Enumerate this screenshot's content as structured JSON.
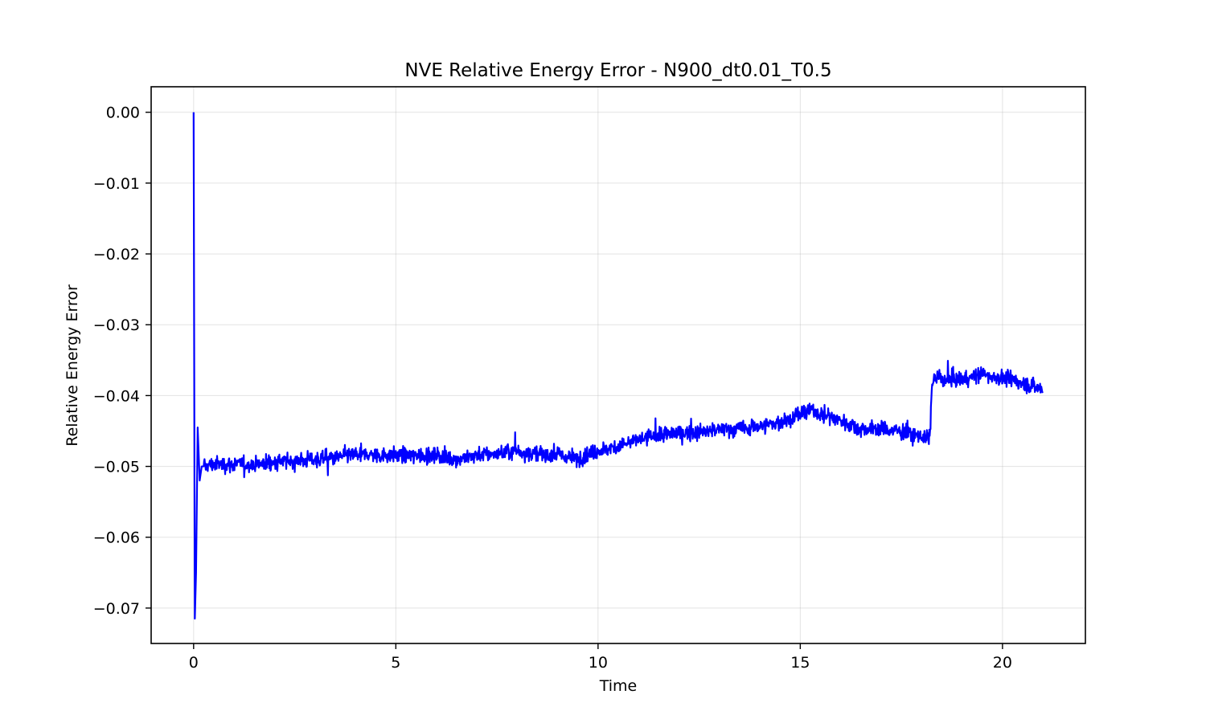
{
  "chart_data": {
    "type": "line",
    "title": "NVE Relative Energy Error - N900_dt0.01_T0.5",
    "xlabel": "Time",
    "ylabel": "Relative Energy Error",
    "xlim": [
      -1.05,
      22.05
    ],
    "ylim": [
      -0.075,
      0.0036
    ],
    "xticks": [
      0,
      5,
      10,
      15,
      20
    ],
    "xtick_labels": [
      "0",
      "5",
      "10",
      "15",
      "20"
    ],
    "yticks": [
      0.0,
      -0.01,
      -0.02,
      -0.03,
      -0.04,
      -0.05,
      -0.06,
      -0.07
    ],
    "ytick_labels": [
      "0.00",
      "−0.01",
      "−0.02",
      "−0.03",
      "−0.04",
      "−0.05",
      "−0.06",
      "−0.07"
    ],
    "grid": true,
    "legend": "none",
    "series": [
      {
        "color": "#0000ff",
        "x": [
          0.0,
          0.03,
          0.06,
          0.1,
          0.15,
          0.2,
          0.25,
          0.5,
          1.0,
          1.5,
          2.0,
          2.5,
          3.0,
          3.5,
          4.0,
          4.5,
          5.0,
          5.5,
          6.0,
          6.5,
          7.0,
          7.5,
          8.0,
          8.5,
          9.0,
          9.5,
          10.0,
          10.5,
          11.0,
          11.5,
          12.0,
          12.5,
          13.0,
          13.5,
          14.0,
          14.5,
          15.0,
          15.3,
          15.5,
          16.0,
          16.5,
          17.0,
          17.5,
          18.0,
          18.2,
          18.25,
          18.3,
          18.5,
          19.0,
          19.5,
          20.0,
          20.5,
          21.0
        ],
        "y": [
          0.0,
          -0.0715,
          -0.065,
          -0.0445,
          -0.052,
          -0.05,
          -0.05,
          -0.0497,
          -0.0497,
          -0.0497,
          -0.0494,
          -0.0492,
          -0.049,
          -0.0488,
          -0.0483,
          -0.0484,
          -0.0484,
          -0.0485,
          -0.0484,
          -0.049,
          -0.0484,
          -0.0482,
          -0.0478,
          -0.0483,
          -0.0484,
          -0.0489,
          -0.0478,
          -0.0472,
          -0.0462,
          -0.0456,
          -0.0453,
          -0.0452,
          -0.0448,
          -0.0447,
          -0.0443,
          -0.0438,
          -0.0427,
          -0.0421,
          -0.0425,
          -0.0435,
          -0.0447,
          -0.0447,
          -0.0451,
          -0.0458,
          -0.0462,
          -0.0392,
          -0.0374,
          -0.0377,
          -0.0377,
          -0.037,
          -0.0375,
          -0.0382,
          -0.0392
        ]
      }
    ]
  }
}
